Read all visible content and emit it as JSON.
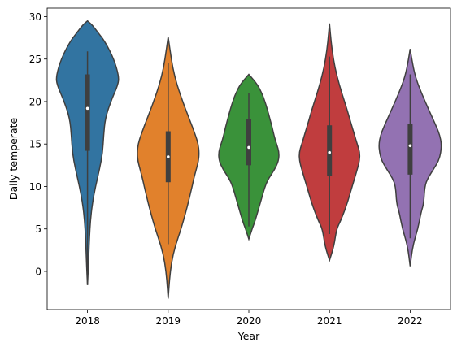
{
  "chart_data": {
    "type": "violin",
    "xlabel": "Year",
    "ylabel": "Daily temperate",
    "ylim": [
      -4.5,
      31
    ],
    "yticks": [
      0,
      5,
      10,
      15,
      20,
      25,
      30
    ],
    "grid": false,
    "categories": [
      "2018",
      "2019",
      "2020",
      "2021",
      "2022"
    ],
    "violins": [
      {
        "category": "2018",
        "color": "#3274a1",
        "profile": [
          [
            -1.6,
            0.0
          ],
          [
            0,
            0.02
          ],
          [
            2,
            0.04
          ],
          [
            4,
            0.06
          ],
          [
            6,
            0.09
          ],
          [
            8,
            0.15
          ],
          [
            10,
            0.25
          ],
          [
            12,
            0.37
          ],
          [
            14,
            0.47
          ],
          [
            16,
            0.5
          ],
          [
            18,
            0.55
          ],
          [
            20,
            0.72
          ],
          [
            22,
            0.95
          ],
          [
            23,
            0.97
          ],
          [
            25,
            0.82
          ],
          [
            27,
            0.55
          ],
          [
            28,
            0.35
          ],
          [
            29,
            0.15
          ],
          [
            29.5,
            0.0
          ]
        ],
        "box": {
          "q1": 14.2,
          "median": 19.2,
          "q3": 23.2,
          "wmin": -1.6,
          "wmax": 25.9
        }
      },
      {
        "category": "2019",
        "color": "#e1812c",
        "profile": [
          [
            -3.2,
            0.0
          ],
          [
            -1,
            0.04
          ],
          [
            1,
            0.1
          ],
          [
            3,
            0.22
          ],
          [
            5,
            0.4
          ],
          [
            7,
            0.55
          ],
          [
            9,
            0.68
          ],
          [
            11,
            0.8
          ],
          [
            12,
            0.87
          ],
          [
            13,
            0.94
          ],
          [
            14,
            0.96
          ],
          [
            15,
            0.93
          ],
          [
            16,
            0.85
          ],
          [
            18,
            0.65
          ],
          [
            20,
            0.45
          ],
          [
            22,
            0.27
          ],
          [
            24,
            0.14
          ],
          [
            26,
            0.06
          ],
          [
            27.6,
            0.0
          ]
        ],
        "box": {
          "q1": 10.5,
          "median": 13.5,
          "q3": 16.5,
          "wmin": 3.2,
          "wmax": 24.5
        }
      },
      {
        "category": "2020",
        "color": "#3a923a",
        "profile": [
          [
            3.8,
            0.0
          ],
          [
            5,
            0.1
          ],
          [
            6,
            0.2
          ],
          [
            8,
            0.35
          ],
          [
            10,
            0.5
          ],
          [
            11,
            0.62
          ],
          [
            12,
            0.8
          ],
          [
            13,
            0.92
          ],
          [
            14,
            0.94
          ],
          [
            15,
            0.86
          ],
          [
            16,
            0.78
          ],
          [
            17,
            0.72
          ],
          [
            18,
            0.65
          ],
          [
            19,
            0.58
          ],
          [
            20,
            0.5
          ],
          [
            21,
            0.4
          ],
          [
            22,
            0.27
          ],
          [
            23.2,
            0.0
          ]
        ],
        "box": {
          "q1": 12.5,
          "median": 14.6,
          "q3": 17.9,
          "wmin": 5.3,
          "wmax": 21.0
        }
      },
      {
        "category": "2021",
        "color": "#c03d3e",
        "profile": [
          [
            1.3,
            0.0
          ],
          [
            3,
            0.14
          ],
          [
            5,
            0.22
          ],
          [
            6,
            0.35
          ],
          [
            8,
            0.55
          ],
          [
            10,
            0.7
          ],
          [
            12,
            0.86
          ],
          [
            13,
            0.93
          ],
          [
            14,
            0.94
          ],
          [
            15,
            0.86
          ],
          [
            16,
            0.78
          ],
          [
            17,
            0.7
          ],
          [
            19,
            0.55
          ],
          [
            21,
            0.38
          ],
          [
            23,
            0.23
          ],
          [
            25,
            0.12
          ],
          [
            27,
            0.05
          ],
          [
            29.2,
            0.0
          ]
        ],
        "box": {
          "q1": 11.2,
          "median": 14.0,
          "q3": 17.2,
          "wmin": 4.4,
          "wmax": 25.3
        }
      },
      {
        "category": "2022",
        "color": "#9372b2",
        "profile": [
          [
            0.6,
            0.0
          ],
          [
            3,
            0.08
          ],
          [
            5,
            0.24
          ],
          [
            7,
            0.34
          ],
          [
            8,
            0.42
          ],
          [
            10,
            0.45
          ],
          [
            11,
            0.55
          ],
          [
            12,
            0.72
          ],
          [
            13,
            0.88
          ],
          [
            14,
            0.95
          ],
          [
            15,
            0.97
          ],
          [
            16,
            0.92
          ],
          [
            17,
            0.82
          ],
          [
            19,
            0.58
          ],
          [
            21,
            0.35
          ],
          [
            23,
            0.15
          ],
          [
            25,
            0.05
          ],
          [
            26.2,
            0.0
          ]
        ],
        "box": {
          "q1": 11.4,
          "median": 14.8,
          "q3": 17.4,
          "wmin": 3.9,
          "wmax": 23.2
        }
      }
    ]
  }
}
